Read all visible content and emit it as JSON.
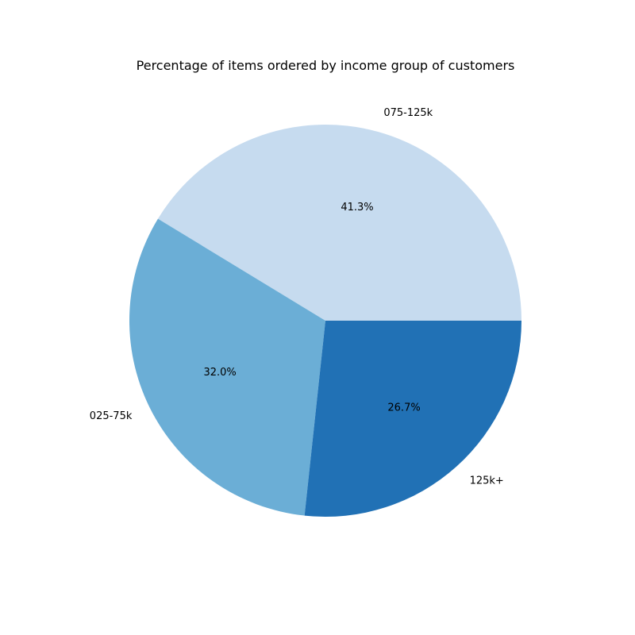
{
  "chart_data": {
    "type": "pie",
    "title": "Percentage of items ordered by income group of customers",
    "start_angle_deg": 0,
    "direction": "counterclockwise",
    "slices": [
      {
        "label": "075-125k",
        "value": 41.3,
        "pct_label": "41.3%",
        "color": "#c6dbef"
      },
      {
        "label": "025-75k",
        "value": 32.0,
        "pct_label": "32.0%",
        "color": "#6baed6"
      },
      {
        "label": "125k+",
        "value": 26.7,
        "pct_label": "26.7%",
        "color": "#2171b5"
      }
    ]
  }
}
